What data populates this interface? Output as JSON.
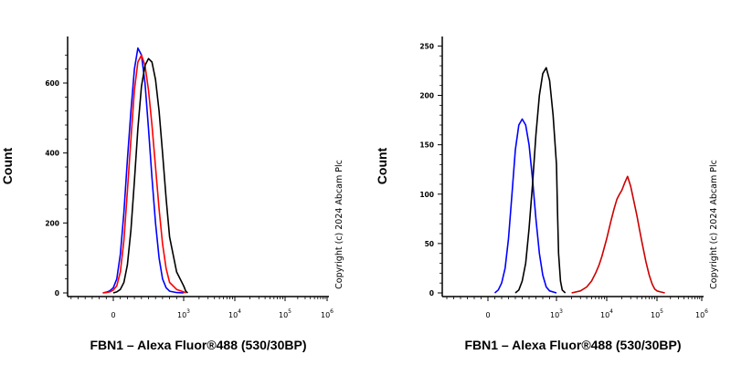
{
  "chart_data": [
    {
      "type": "line",
      "title": "",
      "xlabel": "FBN1 – Alexa Fluor®488 (530/30BP)",
      "ylabel": "Count",
      "copyright": "Copyright (c) 2024 Abcam Plc",
      "xscale": "biexponential",
      "x_ticks": [
        {
          "base": "0",
          "exp": ""
        },
        {
          "base": "10",
          "exp": "3"
        },
        {
          "base": "10",
          "exp": "4"
        },
        {
          "base": "10",
          "exp": "5"
        },
        {
          "base": "10",
          "exp": "6"
        }
      ],
      "ylim": [
        0,
        720
      ],
      "y_ticks": [
        0,
        200,
        400,
        600
      ],
      "grid": false,
      "series": [
        {
          "color": "#0000ff",
          "x": [
            -150,
            -100,
            -50,
            0,
            50,
            100,
            150,
            200,
            250,
            300,
            350,
            400,
            450,
            500,
            550,
            600,
            650,
            700,
            750,
            800,
            900,
            1000
          ],
          "y": [
            0,
            2,
            6,
            15,
            40,
            110,
            230,
            380,
            520,
            640,
            700,
            680,
            600,
            470,
            330,
            200,
            100,
            40,
            15,
            5,
            1,
            0
          ]
        },
        {
          "color": "#ff0000",
          "x": [
            -150,
            -100,
            -50,
            0,
            50,
            100,
            150,
            200,
            250,
            300,
            350,
            400,
            450,
            500,
            550,
            600,
            650,
            700,
            750,
            800,
            900,
            1000,
            1100
          ],
          "y": [
            0,
            1,
            3,
            8,
            20,
            60,
            150,
            290,
            440,
            580,
            660,
            680,
            650,
            580,
            480,
            360,
            240,
            140,
            70,
            30,
            10,
            3,
            0
          ]
        },
        {
          "color": "#000000",
          "x": [
            0,
            50,
            100,
            150,
            200,
            250,
            300,
            350,
            400,
            450,
            500,
            550,
            600,
            650,
            700,
            750,
            800,
            900,
            1000,
            1100,
            1200
          ],
          "y": [
            0,
            3,
            10,
            30,
            80,
            180,
            320,
            470,
            590,
            650,
            670,
            660,
            610,
            520,
            400,
            270,
            160,
            60,
            20,
            5,
            0
          ]
        }
      ]
    },
    {
      "type": "line",
      "title": "",
      "xlabel": "FBN1 – Alexa Fluor®488 (530/30BP)",
      "ylabel": "Count",
      "copyright": "Copyright (c) 2024 Abcam Plc",
      "xscale": "biexponential",
      "x_ticks": [
        {
          "base": "0",
          "exp": ""
        },
        {
          "base": "10",
          "exp": "3"
        },
        {
          "base": "10",
          "exp": "4"
        },
        {
          "base": "10",
          "exp": "5"
        },
        {
          "base": "10",
          "exp": "6"
        }
      ],
      "ylim": [
        0,
        255
      ],
      "y_ticks": [
        0,
        50,
        100,
        150,
        200,
        250
      ],
      "grid": false,
      "series": [
        {
          "color": "#0000ff",
          "x": [
            100,
            150,
            200,
            250,
            300,
            350,
            400,
            450,
            500,
            550,
            600,
            650,
            700,
            750,
            800,
            850,
            900,
            1000
          ],
          "y": [
            0,
            3,
            10,
            25,
            55,
            100,
            145,
            170,
            176,
            170,
            150,
            115,
            75,
            40,
            18,
            6,
            2,
            0
          ]
        },
        {
          "color": "#000000",
          "x": [
            400,
            450,
            500,
            550,
            600,
            650,
            700,
            750,
            800,
            850,
            900,
            950,
            1000,
            1050,
            1100,
            1200,
            1300,
            1500
          ],
          "y": [
            0,
            3,
            12,
            30,
            65,
            110,
            160,
            200,
            222,
            228,
            215,
            180,
            130,
            80,
            40,
            12,
            3,
            0
          ]
        },
        {
          "color": "#cc0000",
          "x": [
            2000,
            3000,
            4000,
            5000,
            6000,
            7000,
            8000,
            10000,
            12000,
            14000,
            16000,
            18000,
            20000,
            23000,
            26000,
            30000,
            35000,
            40000,
            45000,
            50000,
            60000,
            70000,
            80000,
            90000,
            100000,
            120000,
            150000
          ],
          "y": [
            0,
            2,
            6,
            12,
            20,
            28,
            37,
            55,
            72,
            85,
            95,
            100,
            104,
            112,
            118,
            108,
            92,
            78,
            64,
            52,
            32,
            18,
            9,
            4,
            2,
            1,
            0
          ]
        }
      ]
    }
  ]
}
